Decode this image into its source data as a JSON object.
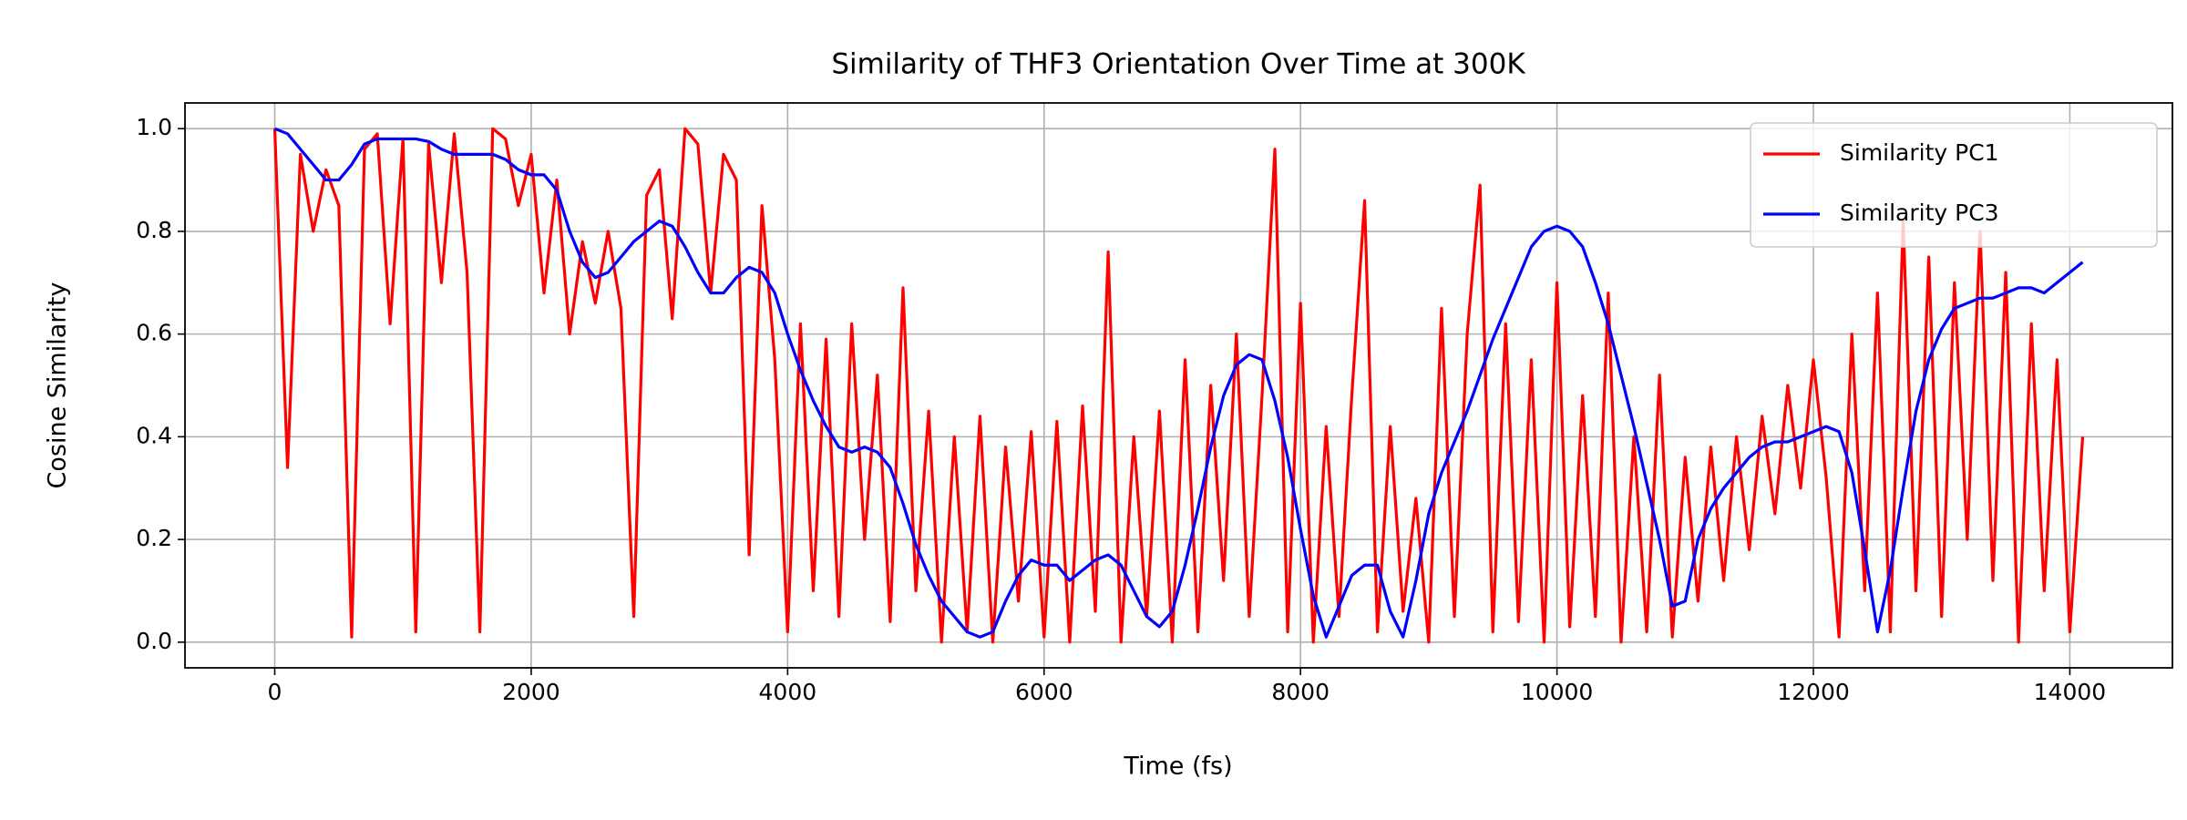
{
  "chart_data": {
    "type": "line",
    "title": "Similarity of THF3 Orientation Over Time at 300K",
    "x_label": "Time (fs)",
    "y_label": "Cosine Similarity",
    "x": [
      0,
      100,
      200,
      300,
      400,
      500,
      600,
      700,
      800,
      900,
      1000,
      1100,
      1200,
      1300,
      1400,
      1500,
      1600,
      1700,
      1800,
      1900,
      2000,
      2100,
      2200,
      2300,
      2400,
      2500,
      2600,
      2700,
      2800,
      2900,
      3000,
      3100,
      3200,
      3300,
      3400,
      3500,
      3600,
      3700,
      3800,
      3900,
      4000,
      4100,
      4200,
      4300,
      4400,
      4500,
      4600,
      4700,
      4800,
      4900,
      5000,
      5100,
      5200,
      5300,
      5400,
      5500,
      5600,
      5700,
      5800,
      5900,
      6000,
      6100,
      6200,
      6300,
      6400,
      6500,
      6600,
      6700,
      6800,
      6900,
      7000,
      7100,
      7200,
      7300,
      7400,
      7500,
      7600,
      7700,
      7800,
      7900,
      8000,
      8100,
      8200,
      8300,
      8400,
      8500,
      8600,
      8700,
      8800,
      8900,
      9000,
      9100,
      9200,
      9300,
      9400,
      9500,
      9600,
      9700,
      9800,
      9900,
      10000,
      10100,
      10200,
      10300,
      10400,
      10500,
      10600,
      10700,
      10800,
      10900,
      11000,
      11100,
      11200,
      11300,
      11400,
      11500,
      11600,
      11700,
      11800,
      11900,
      12000,
      12100,
      12200,
      12300,
      12400,
      12500,
      12600,
      12700,
      12800,
      12900,
      13000,
      13100,
      13200,
      13300,
      13400,
      13500,
      13600,
      13700,
      13800,
      13900,
      14000,
      14100
    ],
    "series": [
      {
        "name": "Similarity PC1",
        "color": "#ff0000",
        "values": [
          1.0,
          0.34,
          0.95,
          0.8,
          0.92,
          0.85,
          0.01,
          0.96,
          0.99,
          0.62,
          0.98,
          0.02,
          0.97,
          0.7,
          0.99,
          0.72,
          0.02,
          1.0,
          0.98,
          0.85,
          0.95,
          0.68,
          0.9,
          0.6,
          0.78,
          0.66,
          0.8,
          0.65,
          0.05,
          0.87,
          0.92,
          0.63,
          1.0,
          0.97,
          0.68,
          0.95,
          0.9,
          0.17,
          0.85,
          0.55,
          0.02,
          0.62,
          0.1,
          0.59,
          0.05,
          0.62,
          0.2,
          0.52,
          0.04,
          0.69,
          0.1,
          0.45,
          0.0,
          0.4,
          0.02,
          0.44,
          0.0,
          0.38,
          0.08,
          0.41,
          0.01,
          0.43,
          0.0,
          0.46,
          0.06,
          0.76,
          0.0,
          0.4,
          0.05,
          0.45,
          0.0,
          0.55,
          0.02,
          0.5,
          0.12,
          0.6,
          0.05,
          0.48,
          0.96,
          0.02,
          0.66,
          0.0,
          0.42,
          0.05,
          0.48,
          0.86,
          0.02,
          0.42,
          0.06,
          0.28,
          0.0,
          0.65,
          0.05,
          0.6,
          0.89,
          0.02,
          0.62,
          0.04,
          0.55,
          0.0,
          0.7,
          0.03,
          0.48,
          0.05,
          0.68,
          0.0,
          0.4,
          0.02,
          0.52,
          0.01,
          0.36,
          0.08,
          0.38,
          0.12,
          0.4,
          0.18,
          0.44,
          0.25,
          0.5,
          0.3,
          0.55,
          0.32,
          0.01,
          0.6,
          0.1,
          0.68,
          0.02,
          0.82,
          0.1,
          0.75,
          0.05,
          0.7,
          0.2,
          0.8,
          0.12,
          0.72,
          0.0,
          0.62,
          0.1,
          0.55,
          0.02,
          0.4
        ]
      },
      {
        "name": "Similarity PC3",
        "color": "#0000ff",
        "values": [
          1.0,
          0.99,
          0.96,
          0.93,
          0.9,
          0.9,
          0.93,
          0.97,
          0.98,
          0.98,
          0.98,
          0.98,
          0.975,
          0.96,
          0.95,
          0.95,
          0.95,
          0.95,
          0.94,
          0.92,
          0.91,
          0.91,
          0.88,
          0.8,
          0.74,
          0.71,
          0.72,
          0.75,
          0.78,
          0.8,
          0.82,
          0.81,
          0.77,
          0.72,
          0.68,
          0.68,
          0.71,
          0.73,
          0.72,
          0.68,
          0.6,
          0.53,
          0.47,
          0.42,
          0.38,
          0.37,
          0.38,
          0.37,
          0.34,
          0.27,
          0.19,
          0.13,
          0.08,
          0.05,
          0.02,
          0.01,
          0.02,
          0.08,
          0.13,
          0.16,
          0.15,
          0.15,
          0.12,
          0.14,
          0.16,
          0.17,
          0.15,
          0.1,
          0.05,
          0.03,
          0.06,
          0.15,
          0.26,
          0.38,
          0.48,
          0.54,
          0.56,
          0.55,
          0.47,
          0.36,
          0.22,
          0.09,
          0.01,
          0.07,
          0.13,
          0.15,
          0.15,
          0.06,
          0.01,
          0.12,
          0.25,
          0.33,
          0.39,
          0.45,
          0.52,
          0.59,
          0.65,
          0.71,
          0.77,
          0.8,
          0.81,
          0.8,
          0.77,
          0.7,
          0.62,
          0.52,
          0.42,
          0.31,
          0.2,
          0.07,
          0.08,
          0.2,
          0.26,
          0.3,
          0.33,
          0.36,
          0.38,
          0.39,
          0.39,
          0.4,
          0.41,
          0.42,
          0.41,
          0.33,
          0.18,
          0.02,
          0.14,
          0.3,
          0.45,
          0.55,
          0.61,
          0.65,
          0.66,
          0.67,
          0.67,
          0.68,
          0.69,
          0.69,
          0.68,
          0.7,
          0.72,
          0.74
        ]
      }
    ],
    "xlim": [
      -700,
      14800
    ],
    "ylim": [
      -0.05,
      1.05
    ],
    "xticks": [
      0,
      2000,
      4000,
      6000,
      8000,
      10000,
      12000,
      14000
    ],
    "yticks": [
      {
        "value": 0,
        "label": "0.0"
      },
      0.2,
      0.4,
      0.6,
      0.8,
      {
        "value": 1,
        "label": "1.0"
      }
    ],
    "grid": true,
    "legend": "upper right"
  }
}
